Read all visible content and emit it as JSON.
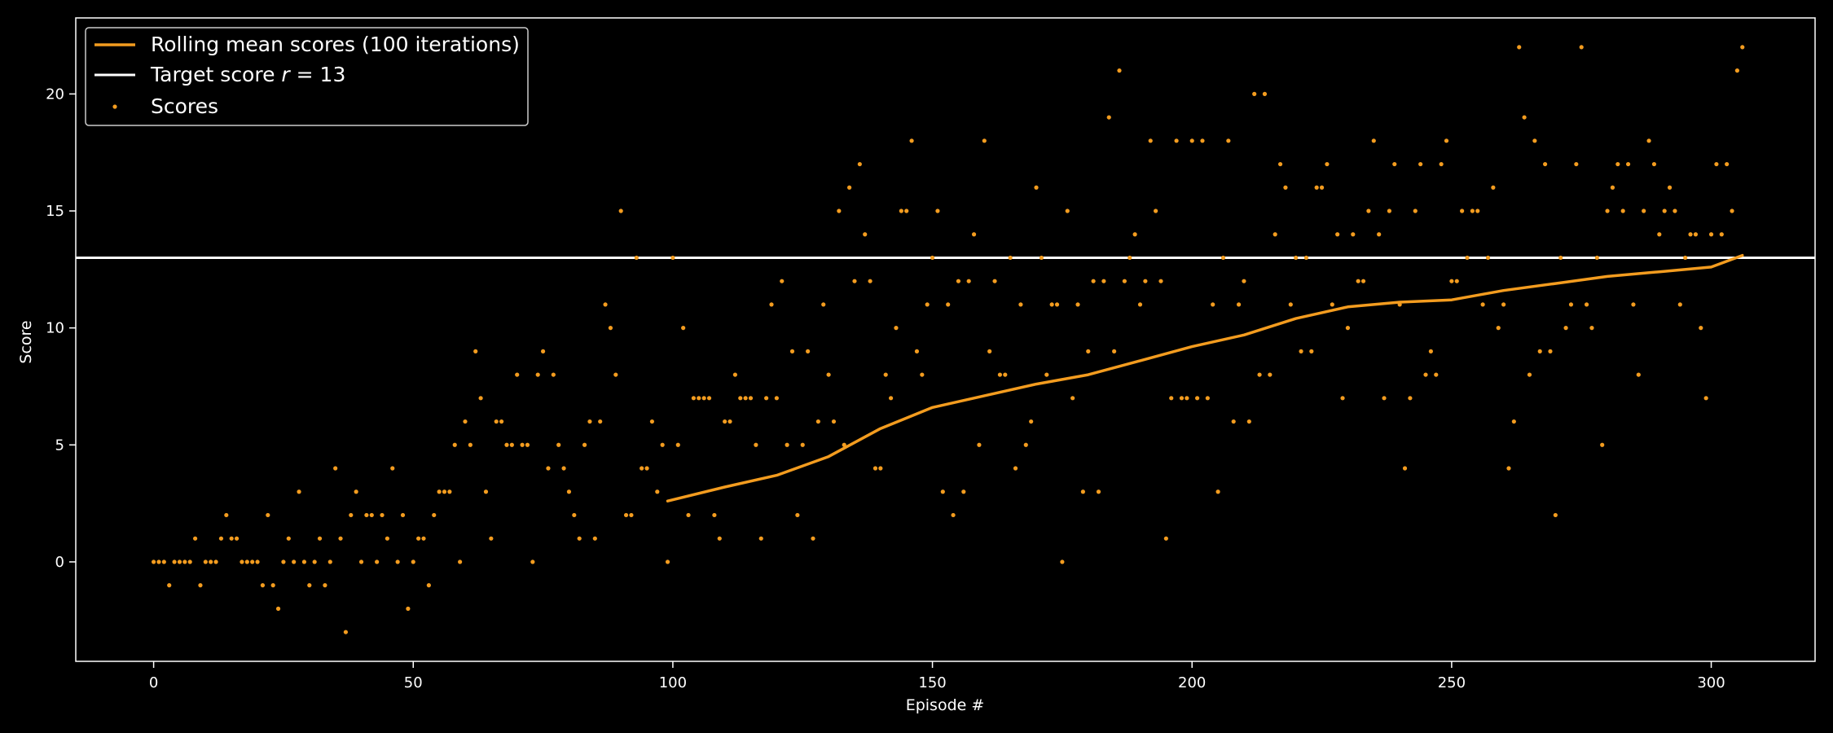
{
  "chart_data": {
    "type": "scatter",
    "xlabel": "Episode #",
    "ylabel": "Score",
    "xlim": [
      -15,
      320
    ],
    "ylim": [
      -4.25,
      23.25
    ],
    "xticks": [
      0,
      50,
      100,
      150,
      200,
      250,
      300
    ],
    "yticks": [
      0,
      5,
      10,
      15,
      20
    ],
    "grid": false,
    "legend_position": "top-left",
    "colors": {
      "background": "#000000",
      "scores": "#f39c1f",
      "rolling": "#f39c1f",
      "target": "#ffffff",
      "axes": "#ffffff"
    },
    "legend": [
      {
        "label": "Rolling mean scores (100 iterations)",
        "kind": "line",
        "color": "#f39c1f"
      },
      {
        "label_pre": "Target score ",
        "label_var": "r",
        "label_post": " = 13",
        "kind": "line",
        "color": "#ffffff"
      },
      {
        "label": "Scores",
        "kind": "dot",
        "color": "#f39c1f"
      }
    ],
    "target_score": 13,
    "series": [
      {
        "name": "Scores",
        "kind": "scatter",
        "x_start": 0,
        "values": [
          0,
          0,
          0,
          -1,
          0,
          0,
          0,
          0,
          1,
          -1,
          0,
          0,
          0,
          1,
          2,
          1,
          1,
          0,
          0,
          0,
          0,
          -1,
          2,
          -1,
          -2,
          0,
          1,
          0,
          3,
          0,
          -1,
          0,
          1,
          -1,
          0,
          4,
          1,
          -3,
          2,
          3,
          0,
          2,
          2,
          0,
          2,
          1,
          4,
          0,
          2,
          -2,
          0,
          1,
          1,
          -1,
          2,
          3,
          3,
          3,
          5,
          0,
          6,
          5,
          9,
          7,
          3,
          1,
          6,
          6,
          5,
          5,
          8,
          5,
          5,
          0,
          8,
          9,
          4,
          8,
          5,
          4,
          3,
          2,
          1,
          5,
          6,
          1,
          6,
          11,
          10,
          8,
          15,
          2,
          2,
          13,
          4,
          4,
          6,
          3,
          5,
          0,
          13,
          5,
          10,
          2,
          7,
          7,
          7,
          7,
          2,
          1,
          6,
          6,
          8,
          7,
          7,
          7,
          5,
          1,
          7,
          11,
          7,
          12,
          5,
          9,
          2,
          5,
          9,
          1,
          6,
          11,
          8,
          6,
          15,
          5,
          16,
          12,
          17,
          14,
          12,
          4,
          4,
          8,
          7,
          10,
          15,
          15,
          18,
          9,
          8,
          11,
          13,
          15,
          3,
          11,
          2,
          12,
          3,
          12,
          14,
          5,
          18,
          9,
          12,
          8,
          8,
          13,
          4,
          11,
          5,
          6,
          16,
          13,
          8,
          11,
          11,
          0,
          15,
          7,
          11,
          3,
          9,
          12,
          3,
          12,
          19,
          9,
          21,
          12,
          13,
          14,
          11,
          12,
          18,
          15,
          12,
          1,
          7,
          18,
          7,
          7,
          18,
          7,
          18,
          7,
          11,
          3,
          13,
          18,
          6,
          11,
          12,
          6,
          20,
          8,
          20,
          8,
          14,
          17,
          16,
          11,
          13,
          9,
          13,
          9,
          16,
          16,
          17,
          11,
          14,
          7,
          10,
          14,
          12,
          12,
          15,
          18,
          14,
          7,
          15,
          17,
          11,
          4,
          7,
          15,
          17,
          8,
          9,
          8,
          17,
          18,
          12,
          12,
          15,
          13,
          15,
          15,
          11,
          13,
          16,
          10,
          11,
          4,
          6,
          22,
          19,
          8,
          18,
          9,
          17,
          9,
          2,
          13,
          10,
          11,
          17,
          22,
          11,
          10,
          13,
          5,
          15,
          16,
          17,
          15,
          17,
          11,
          8,
          15,
          18,
          17,
          14,
          15,
          16,
          15,
          11,
          13,
          14,
          14,
          10,
          7,
          14,
          17,
          14,
          17,
          15,
          21,
          22
        ]
      },
      {
        "name": "Rolling mean scores (100 iterations)",
        "kind": "line",
        "x": [
          99,
          110,
          120,
          130,
          140,
          150,
          160,
          170,
          180,
          190,
          200,
          210,
          220,
          230,
          240,
          250,
          260,
          270,
          280,
          290,
          300,
          306
        ],
        "values": [
          2.6,
          3.2,
          3.7,
          4.5,
          5.7,
          6.6,
          7.1,
          7.6,
          8.0,
          8.6,
          9.2,
          9.7,
          10.4,
          10.9,
          11.1,
          11.2,
          11.6,
          11.9,
          12.2,
          12.4,
          12.6,
          13.1
        ]
      }
    ]
  }
}
